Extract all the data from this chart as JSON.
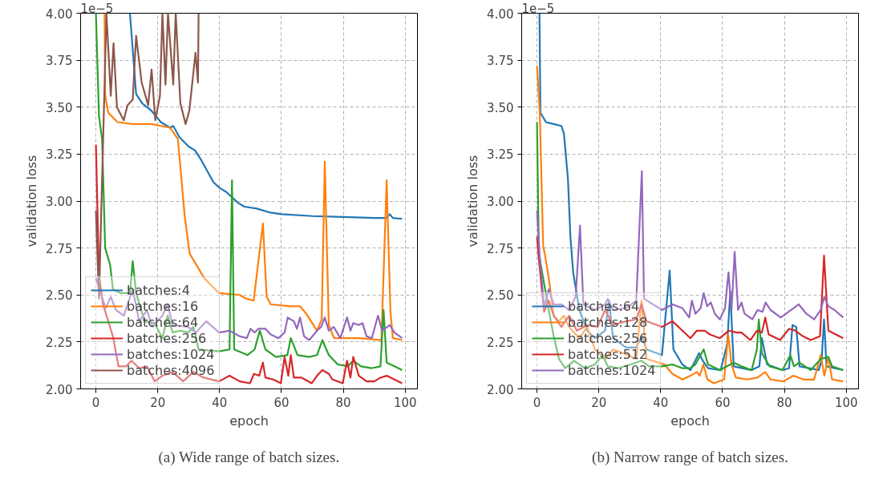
{
  "chart_data": [
    {
      "type": "line",
      "title": "(a) Wide range of batch sizes.",
      "xlabel": "epoch",
      "ylabel": "validation loss",
      "annotations": [
        "1e−5"
      ],
      "xlim": [
        -4.95,
        103.95
      ],
      "ylim": [
        2.0,
        4.0
      ],
      "xticks": [
        0,
        20,
        40,
        60,
        80,
        100
      ],
      "yticks": [
        {
          "value": 2.0,
          "label": "2.00"
        },
        {
          "value": 2.25,
          "label": "2.25"
        },
        {
          "value": 2.5,
          "label": "2.50"
        },
        {
          "value": 2.75,
          "label": "2.75"
        },
        {
          "value": 3.0,
          "label": "3.00"
        },
        {
          "value": 3.25,
          "label": "3.25"
        },
        {
          "value": 3.5,
          "label": "3.50"
        },
        {
          "value": 3.75,
          "label": "3.75"
        },
        {
          "value": 4.0,
          "label": "4.00"
        }
      ],
      "grid": true,
      "legend": "bottom left",
      "marker": "none",
      "line_style": "solid",
      "series": [
        {
          "name": "batches:4",
          "color": "#1f77b4",
          "x": [
            11,
            13,
            15,
            18,
            21,
            24,
            25,
            27,
            30,
            32,
            34,
            36,
            38,
            40,
            42,
            44,
            46,
            48,
            52,
            56,
            60,
            70,
            80,
            90,
            94,
            95,
            96,
            99
          ],
          "values": [
            4.0,
            3.57,
            3.52,
            3.48,
            3.42,
            3.39,
            3.4,
            3.34,
            3.29,
            3.27,
            3.22,
            3.16,
            3.1,
            3.07,
            3.05,
            3.02,
            2.99,
            2.97,
            2.96,
            2.94,
            2.93,
            2.92,
            2.915,
            2.91,
            2.91,
            2.93,
            2.91,
            2.905
          ]
        },
        {
          "name": "batches:16",
          "color": "#ff7f0e",
          "x": [
            2.8,
            3,
            4,
            7,
            12,
            18,
            24,
            26.5,
            27,
            28.7,
            30.3,
            35,
            39.8,
            46.5,
            48.6,
            51,
            54,
            55.2,
            56.5,
            63,
            66,
            68,
            71.5,
            73,
            74,
            75.3,
            77,
            85,
            92.3,
            94,
            95.2,
            96,
            99
          ],
          "values": [
            4.0,
            3.56,
            3.47,
            3.42,
            3.41,
            3.41,
            3.39,
            3.33,
            3.24,
            2.92,
            2.72,
            2.59,
            2.51,
            2.5,
            2.48,
            2.47,
            2.88,
            2.49,
            2.45,
            2.44,
            2.44,
            2.4,
            2.31,
            2.37,
            3.21,
            2.34,
            2.27,
            2.27,
            2.26,
            3.11,
            2.42,
            2.27,
            2.26
          ]
        },
        {
          "name": "batches:64",
          "color": "#2ca02c",
          "x": [
            0,
            1,
            2,
            3,
            4.6,
            5.5,
            8,
            11,
            11.9,
            13,
            15.7,
            19,
            21.5,
            23.2,
            24.8,
            27.3,
            29.8,
            31.5,
            33.2,
            39.8,
            43.2,
            44,
            44.7,
            49,
            51.3,
            53,
            54.8,
            58.2,
            61.9,
            63,
            65.2,
            69,
            71.5,
            73.2,
            75.3,
            78.2,
            81.5,
            83.2,
            85.7,
            89,
            92,
            93,
            94,
            96.5,
            99
          ],
          "values": [
            4.0,
            3.45,
            3.33,
            2.75,
            2.66,
            2.53,
            2.51,
            2.51,
            2.68,
            2.51,
            2.36,
            2.35,
            2.27,
            2.39,
            2.3,
            2.31,
            2.3,
            2.33,
            2.21,
            2.2,
            2.21,
            3.11,
            2.21,
            2.18,
            2.21,
            2.31,
            2.21,
            2.17,
            2.18,
            2.27,
            2.18,
            2.17,
            2.18,
            2.26,
            2.18,
            2.13,
            2.12,
            2.15,
            2.12,
            2.11,
            2.12,
            2.42,
            2.14,
            2.12,
            2.1
          ]
        },
        {
          "name": "batches:256",
          "color": "#d62728",
          "x": [
            0,
            1,
            2.3,
            5.5,
            7.3,
            9.8,
            11.5,
            14,
            16.5,
            19,
            21.5,
            24.8,
            28.2,
            31.5,
            34.8,
            39.8,
            43.2,
            46.5,
            49.8,
            51.1,
            52.8,
            54,
            54.8,
            57.3,
            59.8,
            61,
            62.2,
            63,
            64,
            66.5,
            69.8,
            71.5,
            73.2,
            75.3,
            76.5,
            79.8,
            81.2,
            82.3,
            83.2,
            85,
            87.5,
            90,
            92,
            94,
            96.5,
            99
          ],
          "values": [
            3.3,
            2.6,
            2.45,
            2.28,
            2.12,
            2.12,
            2.15,
            2.11,
            2.12,
            2.04,
            2.07,
            2.09,
            2.04,
            2.09,
            2.06,
            2.04,
            2.07,
            2.04,
            2.03,
            2.08,
            2.07,
            2.14,
            2.06,
            2.05,
            2.03,
            2.17,
            2.07,
            2.18,
            2.06,
            2.06,
            2.03,
            2.07,
            2.1,
            2.08,
            2.05,
            2.03,
            2.15,
            2.06,
            2.17,
            2.07,
            2.04,
            2.04,
            2.06,
            2.07,
            2.05,
            2.03
          ]
        },
        {
          "name": "batches:1024",
          "color": "#9467bd",
          "x": [
            0,
            1.5,
            3.2,
            4.8,
            6.5,
            9,
            11.9,
            14,
            16.5,
            18.2,
            21.5,
            23.2,
            24.8,
            29.8,
            32.3,
            35.7,
            39.8,
            43.2,
            46.5,
            48.8,
            50,
            51.3,
            52.5,
            54.8,
            56.5,
            59,
            61,
            62,
            64,
            65,
            66,
            67.3,
            69,
            71.5,
            72.8,
            74,
            75.3,
            76.9,
            79,
            81.2,
            82.3,
            83.2,
            85,
            86.2,
            87.5,
            89.2,
            91.2,
            92.5,
            95,
            96.5,
            99
          ],
          "values": [
            2.59,
            2.51,
            2.43,
            2.49,
            2.42,
            2.39,
            2.53,
            2.36,
            2.42,
            2.33,
            2.39,
            2.45,
            2.34,
            2.33,
            2.3,
            2.36,
            2.3,
            2.31,
            2.28,
            2.27,
            2.32,
            2.3,
            2.32,
            2.32,
            2.29,
            2.27,
            2.3,
            2.38,
            2.36,
            2.32,
            2.38,
            2.28,
            2.26,
            2.31,
            2.33,
            2.38,
            2.31,
            2.33,
            2.27,
            2.38,
            2.31,
            2.35,
            2.34,
            2.35,
            2.28,
            2.27,
            2.39,
            2.31,
            2.34,
            2.3,
            2.27
          ]
        },
        {
          "name": "batches:4096",
          "color": "#8c564b",
          "x": [
            0,
            1,
            3.4,
            4.8,
            5.7,
            6.8,
            9,
            10.2,
            11.9,
            13,
            14.8,
            16.9,
            18,
            19.2,
            20.7,
            21.5,
            22.5,
            23.3,
            25,
            25.8,
            27.3,
            29,
            30.2,
            32.2,
            33,
            33.2
          ],
          "values": [
            2.95,
            2.48,
            4.0,
            3.56,
            3.84,
            3.5,
            3.43,
            3.51,
            3.54,
            3.88,
            3.63,
            3.51,
            3.7,
            3.43,
            3.56,
            4.0,
            3.62,
            4.0,
            3.62,
            4.0,
            3.52,
            3.41,
            3.48,
            3.79,
            3.63,
            4.0
          ]
        }
      ]
    },
    {
      "type": "line",
      "title": "(b) Narrow range of batch sizes.",
      "xlabel": "epoch",
      "ylabel": "validation loss",
      "annotations": [
        "1e−5"
      ],
      "xlim": [
        -4.95,
        103.95
      ],
      "ylim": [
        2.0,
        4.0
      ],
      "xticks": [
        0,
        20,
        40,
        60,
        80,
        100
      ],
      "yticks": [
        {
          "value": 2.0,
          "label": "2.00"
        },
        {
          "value": 2.25,
          "label": "2.25"
        },
        {
          "value": 2.5,
          "label": "2.50"
        },
        {
          "value": 2.75,
          "label": "2.75"
        },
        {
          "value": 3.0,
          "label": "3.00"
        },
        {
          "value": 3.25,
          "label": "3.25"
        },
        {
          "value": 3.5,
          "label": "3.50"
        },
        {
          "value": 3.75,
          "label": "3.75"
        },
        {
          "value": 4.0,
          "label": "4.00"
        }
      ],
      "grid": true,
      "legend": "bottom left",
      "marker": "none",
      "line_style": "solid",
      "series": [
        {
          "name": "batches:64",
          "color": "#1f77b4",
          "x": [
            0.8,
            1.1,
            2.9,
            5.4,
            7.9,
            8.7,
            10,
            10.8,
            11.7,
            13.7,
            16.2,
            18.7,
            22,
            23.3,
            24.6,
            28.8,
            32.1,
            33.8,
            35.4,
            40.4,
            42.9,
            44.1,
            47,
            49.6,
            52.4,
            53.6,
            55.3,
            59.4,
            61.5,
            62.5,
            63.6,
            69.4,
            71.9,
            72.7,
            74.4,
            79.4,
            81.5,
            82.6,
            83.8,
            84.9,
            91.1,
            92,
            92.8,
            93.6,
            99
          ],
          "values": [
            4.0,
            3.47,
            3.42,
            3.41,
            3.4,
            3.36,
            3.12,
            2.81,
            2.62,
            2.42,
            2.31,
            2.27,
            2.31,
            2.47,
            2.27,
            2.22,
            2.22,
            2.28,
            2.21,
            2.18,
            2.63,
            2.21,
            2.13,
            2.1,
            2.19,
            2.15,
            2.11,
            2.1,
            2.24,
            2.52,
            2.12,
            2.1,
            2.12,
            2.27,
            2.13,
            2.1,
            2.11,
            2.34,
            2.33,
            2.12,
            2.1,
            2.15,
            2.37,
            2.12,
            2.1
          ]
        },
        {
          "name": "batches:128",
          "color": "#ff7f0e",
          "x": [
            0,
            0.9,
            2,
            2.5,
            3.8,
            5.4,
            7.1,
            8.7,
            10.4,
            12,
            13.7,
            16.2,
            18.7,
            22,
            24.6,
            27.9,
            32.1,
            33.8,
            35.4,
            41.2,
            43.8,
            47,
            49.6,
            51.7,
            52.6,
            53.8,
            55.1,
            57.2,
            60.5,
            61.8,
            62.9,
            64.3,
            68,
            71.3,
            73.8,
            75.5,
            79.6,
            82.9,
            86.2,
            89.6,
            91.7,
            92.9,
            94.2,
            95.4,
            99
          ],
          "values": [
            3.72,
            3.47,
            2.76,
            2.72,
            2.59,
            2.39,
            2.36,
            2.39,
            2.33,
            2.3,
            2.27,
            2.33,
            2.21,
            2.16,
            2.21,
            2.19,
            2.16,
            2.47,
            2.16,
            2.13,
            2.08,
            2.05,
            2.07,
            2.09,
            2.07,
            2.13,
            2.05,
            2.03,
            2.05,
            2.29,
            2.13,
            2.06,
            2.05,
            2.06,
            2.09,
            2.05,
            2.04,
            2.07,
            2.05,
            2.05,
            2.18,
            2.07,
            2.17,
            2.05,
            2.04
          ]
        },
        {
          "name": "batches:256",
          "color": "#2ca02c",
          "x": [
            0,
            0.6,
            3.8,
            5.4,
            7.1,
            9.1,
            12,
            15.4,
            18.7,
            21.2,
            22.9,
            26.2,
            30.4,
            33.8,
            36.2,
            40.4,
            43.8,
            47,
            49.6,
            51.2,
            53.9,
            55.3,
            59.1,
            63.6,
            66.1,
            69.4,
            71.1,
            71.7,
            72.7,
            75.2,
            79.4,
            81.9,
            83.1,
            84.8,
            88.5,
            91.8,
            94.2,
            95.4,
            99
          ],
          "values": [
            3.42,
            2.72,
            2.42,
            2.28,
            2.16,
            2.11,
            2.15,
            2.11,
            2.13,
            2.18,
            2.12,
            2.11,
            2.13,
            2.15,
            2.12,
            2.12,
            2.13,
            2.11,
            2.11,
            2.13,
            2.21,
            2.13,
            2.1,
            2.14,
            2.12,
            2.1,
            2.21,
            2.37,
            2.19,
            2.12,
            2.1,
            2.18,
            2.12,
            2.14,
            2.1,
            2.16,
            2.17,
            2.12,
            2.1
          ]
        },
        {
          "name": "batches:512",
          "color": "#d62728",
          "x": [
            0,
            0.6,
            2.3,
            3.8,
            5.4,
            7.9,
            10.4,
            12.9,
            16.2,
            19.6,
            22,
            24.6,
            28.8,
            32.1,
            33.8,
            35.4,
            40.4,
            43.8,
            47,
            49.6,
            51.7,
            54.2,
            55.9,
            59.1,
            62,
            64.5,
            66.1,
            69,
            71.1,
            72.7,
            73.8,
            74.9,
            78.6,
            81.5,
            83.5,
            86,
            88.5,
            91.5,
            92.8,
            94.2,
            99
          ],
          "values": [
            2.81,
            2.69,
            2.41,
            2.47,
            2.39,
            2.33,
            2.39,
            2.31,
            2.34,
            2.33,
            2.42,
            2.34,
            2.36,
            2.37,
            2.45,
            2.36,
            2.33,
            2.36,
            2.31,
            2.27,
            2.31,
            2.31,
            2.29,
            2.27,
            2.31,
            2.3,
            2.3,
            2.26,
            2.31,
            2.3,
            2.38,
            2.29,
            2.26,
            2.32,
            2.31,
            2.28,
            2.26,
            2.28,
            2.71,
            2.31,
            2.27
          ]
        },
        {
          "name": "batches:1024",
          "color": "#9467bd",
          "x": [
            0,
            0.8,
            2.3,
            3.8,
            5.4,
            7.9,
            10.4,
            12.5,
            13.9,
            15,
            18.7,
            22,
            22.9,
            24.6,
            28.8,
            32.1,
            33.9,
            34.6,
            40.4,
            43.8,
            47,
            49.2,
            50.1,
            51.2,
            52.9,
            53.9,
            55,
            56.2,
            57.5,
            59.1,
            60.8,
            61.9,
            62.9,
            63.9,
            65,
            66.1,
            67.1,
            69.6,
            71.3,
            72.9,
            73.9,
            75.5,
            78.8,
            80.5,
            83,
            84.6,
            87.1,
            89.6,
            91.7,
            92.9,
            94.2,
            96.2,
            99
          ],
          "values": [
            2.95,
            2.72,
            2.43,
            2.53,
            2.45,
            2.45,
            2.42,
            2.49,
            2.87,
            2.45,
            2.42,
            2.45,
            2.48,
            2.42,
            2.43,
            2.47,
            3.16,
            2.48,
            2.42,
            2.45,
            2.43,
            2.38,
            2.47,
            2.4,
            2.43,
            2.51,
            2.44,
            2.46,
            2.4,
            2.37,
            2.43,
            2.62,
            2.42,
            2.73,
            2.42,
            2.46,
            2.4,
            2.37,
            2.42,
            2.41,
            2.46,
            2.42,
            2.38,
            2.4,
            2.43,
            2.45,
            2.4,
            2.37,
            2.42,
            2.49,
            2.44,
            2.42,
            2.38
          ]
        }
      ]
    }
  ]
}
